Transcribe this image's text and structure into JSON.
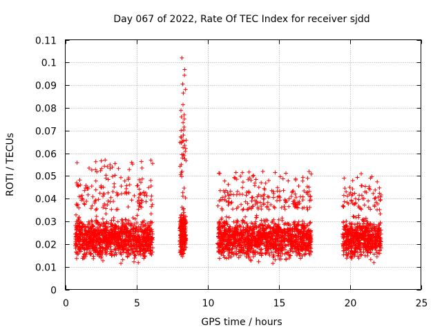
{
  "chart_data": {
    "type": "scatter",
    "title": "Day 067 of 2022, Rate Of TEC Index for receiver sjdd",
    "xlabel": "GPS time / hours",
    "ylabel": "ROTI / TECUs",
    "xlim": [
      0,
      25
    ],
    "ylim": [
      0,
      0.11
    ],
    "x_ticks": [
      "0",
      "5",
      "10",
      "15",
      "20",
      "25"
    ],
    "y_ticks": [
      "0",
      "0.01",
      "0.02",
      "0.03",
      "0.04",
      "0.05",
      "0.06",
      "0.07",
      "0.08",
      "0.09",
      "0.1",
      "0.11"
    ],
    "grid": true,
    "marker": "+",
    "marker_color": "#ff0000",
    "series": [
      {
        "name": "ROTI",
        "clusters": [
          {
            "x_range": [
              0.7,
              6.15
            ],
            "y_typical": [
              0.01,
              0.035
            ],
            "y_max": 0.057,
            "y_min": 0.006,
            "count": 1200
          },
          {
            "x_range": [
              8.05,
              8.5
            ],
            "y_typical": [
              0.01,
              0.04
            ],
            "y_max": 0.102,
            "y_min": 0.008,
            "count": 220
          },
          {
            "x_range": [
              10.7,
              17.3
            ],
            "y_typical": [
              0.01,
              0.035
            ],
            "y_max": 0.052,
            "y_min": 0.006,
            "count": 1400
          },
          {
            "x_range": [
              19.5,
              22.2
            ],
            "y_typical": [
              0.01,
              0.035
            ],
            "y_max": 0.051,
            "y_min": 0.008,
            "count": 600
          }
        ],
        "highlight_points": [
          {
            "x": 8.2,
            "y": 0.102
          },
          {
            "x": 8.25,
            "y": 0.0905
          },
          {
            "x": 8.3,
            "y": 0.0865
          },
          {
            "x": 8.28,
            "y": 0.0735
          },
          {
            "x": 8.35,
            "y": 0.0715
          },
          {
            "x": 8.3,
            "y": 0.068
          },
          {
            "x": 8.32,
            "y": 0.0655
          },
          {
            "x": 8.4,
            "y": 0.0635
          },
          {
            "x": 8.28,
            "y": 0.0625
          },
          {
            "x": 8.35,
            "y": 0.059
          },
          {
            "x": 8.4,
            "y": 0.0575
          },
          {
            "x": 2.8,
            "y": 0.057
          },
          {
            "x": 3.5,
            "y": 0.0555
          },
          {
            "x": 5.4,
            "y": 0.0535
          },
          {
            "x": 12.0,
            "y": 0.0515
          },
          {
            "x": 20.8,
            "y": 0.051
          },
          {
            "x": 0.8,
            "y": 0.047
          },
          {
            "x": 0.9,
            "y": 0.0455
          },
          {
            "x": 19.6,
            "y": 0.049
          },
          {
            "x": 14.3,
            "y": 0.048
          }
        ]
      }
    ]
  }
}
